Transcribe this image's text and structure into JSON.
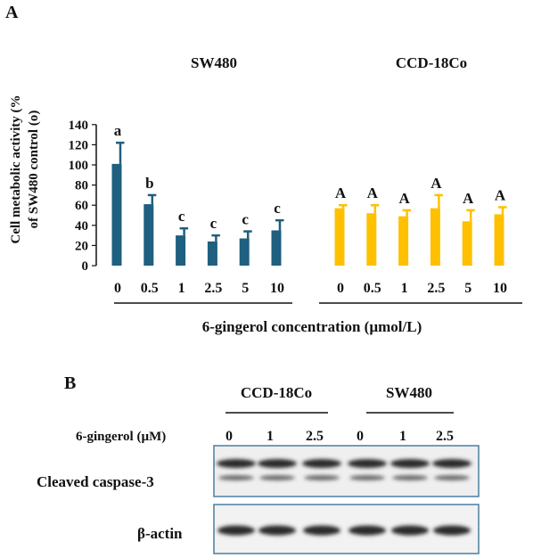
{
  "panel_a": {
    "label": "A",
    "chart_data": {
      "type": "bar",
      "ylabel_line1": "Cell metabolic activity (%",
      "ylabel_line2": "of SW480 control (o)",
      "xlabel": "6-gingerol concentration (µmol/L)",
      "ylim": [
        0,
        140
      ],
      "yticks": [
        0,
        20,
        40,
        60,
        80,
        100,
        120,
        140
      ],
      "groups": [
        {
          "name": "SW480",
          "color": "#1f5f7f",
          "categories": [
            "0",
            "0.5",
            "1",
            "2.5",
            "5",
            "10"
          ],
          "values": [
            101,
            61,
            30,
            24,
            27,
            35
          ],
          "errors": [
            21,
            9,
            7,
            6,
            7,
            10
          ],
          "letters": [
            "a",
            "b",
            "c",
            "c",
            "c",
            "c"
          ]
        },
        {
          "name": "CCD-18Co",
          "color": "#ffc000",
          "categories": [
            "0",
            "0.5",
            "1",
            "2.5",
            "5",
            "10"
          ],
          "values": [
            57,
            52,
            49,
            57,
            44,
            51
          ],
          "errors": [
            3,
            8,
            6,
            13,
            11,
            7
          ],
          "letters": [
            "A",
            "A",
            "A",
            "A",
            "A",
            "A"
          ]
        }
      ]
    }
  },
  "panel_b": {
    "label": "B",
    "group_labels": [
      "CCD-18Co",
      "SW480"
    ],
    "row_label": "6-gingerol (µM)",
    "lanes": [
      "0",
      "1",
      "2.5",
      "0",
      "1",
      "2.5"
    ],
    "blots": [
      {
        "name": "Cleaved caspase-3"
      },
      {
        "name": "β-actin"
      }
    ]
  }
}
